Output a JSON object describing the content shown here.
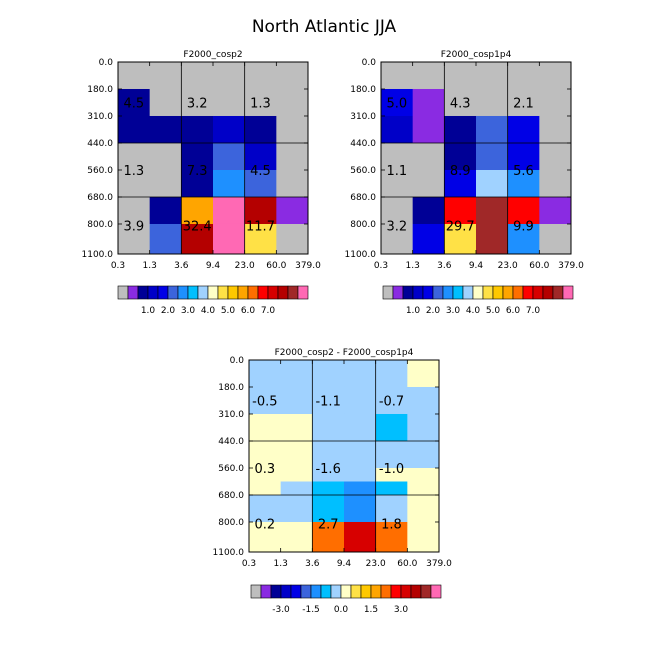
{
  "title": "North Atlantic JJA",
  "colors": {
    "abs": [
      "#bebebe",
      "#8a2be2",
      "#000096",
      "#0000c8",
      "#0000e6",
      "#3c64dc",
      "#1e90ff",
      "#00bfff",
      "#a0d2ff",
      "#ffffc8",
      "#ffe146",
      "#ffc800",
      "#ffa500",
      "#ff6e00",
      "#ff0000",
      "#d70000",
      "#b40000",
      "#a02828",
      "#ff69b4"
    ],
    "diff": [
      "#bebebe",
      "#8a2be2",
      "#000096",
      "#0000c8",
      "#0000e6",
      "#3c64dc",
      "#1e90ff",
      "#00bfff",
      "#a0d2ff",
      "#ffffc8",
      "#ffe146",
      "#ffc800",
      "#ffa500",
      "#ff6e00",
      "#ff0000",
      "#d70000",
      "#b40000",
      "#a02828",
      "#ff69b4"
    ]
  },
  "chart_data": [
    {
      "type": "heatmap",
      "title": "F2000_cosp2",
      "x_ticks": [
        "0.3",
        "1.3",
        "3.6",
        "9.4",
        "23.0",
        "60.0",
        "379.0"
      ],
      "y_ticks": [
        "0.0",
        "180.0",
        "310.0",
        "440.0",
        "560.0",
        "680.0",
        "800.0",
        "1100.0"
      ],
      "x_bins": [
        0.3,
        1.3,
        3.6,
        9.4,
        23.0,
        60.0,
        379.0
      ],
      "y_bins": [
        0,
        180,
        310,
        440,
        560,
        680,
        800,
        1100
      ],
      "y_reversed": true,
      "cell_color_index": [
        [
          0,
          0,
          0,
          0,
          0,
          0
        ],
        [
          2,
          0,
          0,
          0,
          0,
          0
        ],
        [
          2,
          2,
          2,
          3,
          2,
          0
        ],
        [
          0,
          0,
          2,
          5,
          3,
          0
        ],
        [
          0,
          0,
          2,
          6,
          5,
          0
        ],
        [
          0,
          2,
          12,
          18,
          16,
          1
        ],
        [
          0,
          5,
          16,
          18,
          10,
          0
        ]
      ],
      "region_labels": [
        {
          "text": "4.5",
          "col": 0.5,
          "row": 1.5
        },
        {
          "text": "3.2",
          "col": 2.5,
          "row": 1.5
        },
        {
          "text": "1.3",
          "col": 4.5,
          "row": 1.5
        },
        {
          "text": "1.3",
          "col": 0.5,
          "row": 4.0
        },
        {
          "text": "7.3",
          "col": 2.5,
          "row": 4.0
        },
        {
          "text": "4.5",
          "col": 4.5,
          "row": 4.0
        },
        {
          "text": "3.9",
          "col": 0.5,
          "row": 6.0
        },
        {
          "text": "32.4",
          "col": 2.5,
          "row": 6.0
        },
        {
          "text": "11.7",
          "col": 4.5,
          "row": 6.0
        }
      ],
      "colorbar_labels": [
        "1.0",
        "2.0",
        "3.0",
        "4.0",
        "5.0",
        "6.0",
        "7.0"
      ]
    },
    {
      "type": "heatmap",
      "title": "F2000_cosp1p4",
      "x_ticks": [
        "0.3",
        "1.3",
        "3.6",
        "9.4",
        "23.0",
        "60.0",
        "379.0"
      ],
      "y_ticks": [
        "0.0",
        "180.0",
        "310.0",
        "440.0",
        "560.0",
        "680.0",
        "800.0",
        "1100.0"
      ],
      "x_bins": [
        0.3,
        1.3,
        3.6,
        9.4,
        23.0,
        60.0,
        379.0
      ],
      "y_bins": [
        0,
        180,
        310,
        440,
        560,
        680,
        800,
        1100
      ],
      "y_reversed": true,
      "cell_color_index": [
        [
          0,
          0,
          0,
          0,
          0,
          0
        ],
        [
          4,
          1,
          0,
          0,
          0,
          0
        ],
        [
          3,
          1,
          2,
          5,
          4,
          0
        ],
        [
          0,
          0,
          2,
          5,
          4,
          0
        ],
        [
          0,
          0,
          4,
          8,
          6,
          0
        ],
        [
          0,
          2,
          14,
          17,
          14,
          1
        ],
        [
          0,
          4,
          10,
          17,
          6,
          0
        ]
      ],
      "region_labels": [
        {
          "text": "5.0",
          "col": 0.5,
          "row": 1.5
        },
        {
          "text": "4.3",
          "col": 2.5,
          "row": 1.5
        },
        {
          "text": "2.1",
          "col": 4.5,
          "row": 1.5
        },
        {
          "text": "1.1",
          "col": 0.5,
          "row": 4.0
        },
        {
          "text": "8.9",
          "col": 2.5,
          "row": 4.0
        },
        {
          "text": "5.6",
          "col": 4.5,
          "row": 4.0
        },
        {
          "text": "3.2",
          "col": 0.5,
          "row": 6.0
        },
        {
          "text": "29.7",
          "col": 2.5,
          "row": 6.0
        },
        {
          "text": "9.9",
          "col": 4.5,
          "row": 6.0
        }
      ],
      "colorbar_labels": [
        "1.0",
        "2.0",
        "3.0",
        "4.0",
        "5.0",
        "6.0",
        "7.0"
      ]
    },
    {
      "type": "heatmap",
      "title": "F2000_cosp2 - F2000_cosp1p4",
      "x_ticks": [
        "0.3",
        "1.3",
        "3.6",
        "9.4",
        "23.0",
        "60.0",
        "379.0"
      ],
      "y_ticks": [
        "0.0",
        "180.0",
        "310.0",
        "440.0",
        "560.0",
        "680.0",
        "800.0",
        "1100.0"
      ],
      "x_bins": [
        0.3,
        1.3,
        3.6,
        9.4,
        23.0,
        60.0,
        379.0
      ],
      "y_bins": [
        0,
        180,
        310,
        440,
        560,
        680,
        800,
        1100
      ],
      "y_reversed": true,
      "cell_color_index": [
        [
          8,
          8,
          8,
          8,
          8,
          9
        ],
        [
          8,
          8,
          8,
          8,
          8,
          8
        ],
        [
          9,
          9,
          8,
          8,
          7,
          8
        ],
        [
          9,
          9,
          8,
          8,
          8,
          8
        ],
        [
          9,
          9,
          8,
          8,
          9,
          9
        ],
        [
          9,
          8,
          7,
          6,
          7,
          9
        ],
        [
          8,
          8,
          7,
          6,
          8,
          9
        ],
        [
          9,
          9,
          13,
          15,
          13,
          9
        ]
      ],
      "y_rows_bounds": [
        0,
        180,
        310,
        440,
        560,
        620,
        680,
        800,
        1100
      ],
      "region_labels": [
        {
          "text": "-0.5",
          "col": 0.5,
          "row": 1.5
        },
        {
          "text": "-1.1",
          "col": 2.5,
          "row": 1.5
        },
        {
          "text": "-0.7",
          "col": 4.5,
          "row": 1.5
        },
        {
          "text": "0.3",
          "col": 0.5,
          "row": 4.0
        },
        {
          "text": "-1.6",
          "col": 2.5,
          "row": 4.0
        },
        {
          "text": "-1.0",
          "col": 4.5,
          "row": 4.0
        },
        {
          "text": "0.2",
          "col": 0.5,
          "row": 6.0
        },
        {
          "text": "2.7",
          "col": 2.5,
          "row": 6.0
        },
        {
          "text": "1.8",
          "col": 4.5,
          "row": 6.0
        }
      ],
      "colorbar_labels": [
        "-3.0",
        "-1.5",
        "0.0",
        "1.5",
        "3.0"
      ]
    }
  ]
}
